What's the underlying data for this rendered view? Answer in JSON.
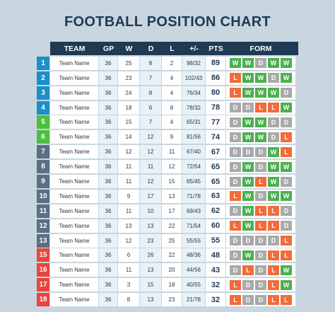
{
  "title": "FOOTBALL POSITION CHART",
  "table": {
    "headers": [
      "TEAM",
      "GP",
      "W",
      "D",
      "L",
      "+/-",
      "PTS",
      "FORM"
    ],
    "rows": [
      {
        "rank": 1,
        "color": "#1b8fc9",
        "team": "Team Name",
        "gp": 36,
        "w": 25,
        "d": 8,
        "l": 2,
        "gd": "98/32",
        "pts": 89,
        "form": [
          "W",
          "W",
          "D",
          "W",
          "W"
        ]
      },
      {
        "rank": 2,
        "color": "#1b8fc9",
        "team": "Team Name",
        "gp": 36,
        "w": 23,
        "d": 7,
        "l": 4,
        "gd": "102/43",
        "pts": 86,
        "form": [
          "L",
          "W",
          "W",
          "D",
          "W"
        ]
      },
      {
        "rank": 3,
        "color": "#1b8fc9",
        "team": "Team Name",
        "gp": 36,
        "w": 24,
        "d": 8,
        "l": 4,
        "gd": "76/34",
        "pts": 80,
        "form": [
          "L",
          "W",
          "W",
          "W",
          "D"
        ]
      },
      {
        "rank": 4,
        "color": "#1b8fc9",
        "team": "Team Name",
        "gp": 36,
        "w": 18,
        "d": 6,
        "l": 8,
        "gd": "78/32",
        "pts": 78,
        "form": [
          "D",
          "D",
          "L",
          "L",
          "W"
        ]
      },
      {
        "rank": 5,
        "color": "#4cbf3f",
        "team": "Team Name",
        "gp": 36,
        "w": 15,
        "d": 7,
        "l": 4,
        "gd": "65/31",
        "pts": 77,
        "form": [
          "D",
          "W",
          "W",
          "D",
          "D"
        ]
      },
      {
        "rank": 6,
        "color": "#4cbf3f",
        "team": "Team Name",
        "gp": 36,
        "w": 14,
        "d": 12,
        "l": 9,
        "gd": "81/56",
        "pts": 74,
        "form": [
          "D",
          "W",
          "W",
          "D",
          "L"
        ]
      },
      {
        "rank": 7,
        "color": "#5b6f86",
        "team": "Team Name",
        "gp": 36,
        "w": 12,
        "d": 12,
        "l": 11,
        "gd": "67/40",
        "pts": 67,
        "form": [
          "D",
          "D",
          "D",
          "W",
          "L"
        ]
      },
      {
        "rank": 8,
        "color": "#5b6f86",
        "team": "Team Name",
        "gp": 36,
        "w": 11,
        "d": 11,
        "l": 12,
        "gd": "72/54",
        "pts": 65,
        "form": [
          "D",
          "W",
          "D",
          "W",
          "W"
        ]
      },
      {
        "rank": 9,
        "color": "#5b6f86",
        "team": "Team Name",
        "gp": 36,
        "w": 11,
        "d": 12,
        "l": 15,
        "gd": "65/45",
        "pts": 65,
        "form": [
          "D",
          "W",
          "L",
          "W",
          "D"
        ]
      },
      {
        "rank": 10,
        "color": "#5b6f86",
        "team": "Team Name",
        "gp": 36,
        "w": 9,
        "d": 17,
        "l": 13,
        "gd": "71/78",
        "pts": 63,
        "form": [
          "L",
          "W",
          "D",
          "W",
          "W"
        ]
      },
      {
        "rank": 11,
        "color": "#5b6f86",
        "team": "Team Name",
        "gp": 36,
        "w": 11,
        "d": 10,
        "l": 17,
        "gd": "69/43",
        "pts": 62,
        "form": [
          "D",
          "W",
          "L",
          "L",
          "D"
        ]
      },
      {
        "rank": 12,
        "color": "#5b6f86",
        "team": "Team Name",
        "gp": 36,
        "w": 13,
        "d": 13,
        "l": 22,
        "gd": "71/54",
        "pts": 60,
        "form": [
          "L",
          "W",
          "L",
          "L",
          "D"
        ]
      },
      {
        "rank": 13,
        "color": "#5b6f86",
        "team": "Team Name",
        "gp": 36,
        "w": 12,
        "d": 23,
        "l": 25,
        "gd": "55/55",
        "pts": 55,
        "form": [
          "D",
          "D",
          "D",
          "D",
          "L"
        ]
      },
      {
        "rank": 15,
        "color": "#e8453c",
        "team": "Team Name",
        "gp": 36,
        "w": 6,
        "d": 26,
        "l": 22,
        "gd": "48/36",
        "pts": 48,
        "form": [
          "D",
          "W",
          "D",
          "L",
          "L"
        ]
      },
      {
        "rank": 16,
        "color": "#e8453c",
        "team": "Team Name",
        "gp": 36,
        "w": 11,
        "d": 13,
        "l": 20,
        "gd": "44/56",
        "pts": 43,
        "form": [
          "D",
          "L",
          "D",
          "L",
          "W"
        ]
      },
      {
        "rank": 17,
        "color": "#e8453c",
        "team": "Team Name",
        "gp": 36,
        "w": 3,
        "d": 15,
        "l": 18,
        "gd": "40/55",
        "pts": 32,
        "form": [
          "L",
          "D",
          "D",
          "L",
          "W"
        ]
      },
      {
        "rank": 18,
        "color": "#e8453c",
        "team": "Team Name",
        "gp": 36,
        "w": 8,
        "d": 13,
        "l": 23,
        "gd": "21/78",
        "pts": 32,
        "form": [
          "L",
          "D",
          "D",
          "L",
          "L"
        ]
      }
    ]
  }
}
